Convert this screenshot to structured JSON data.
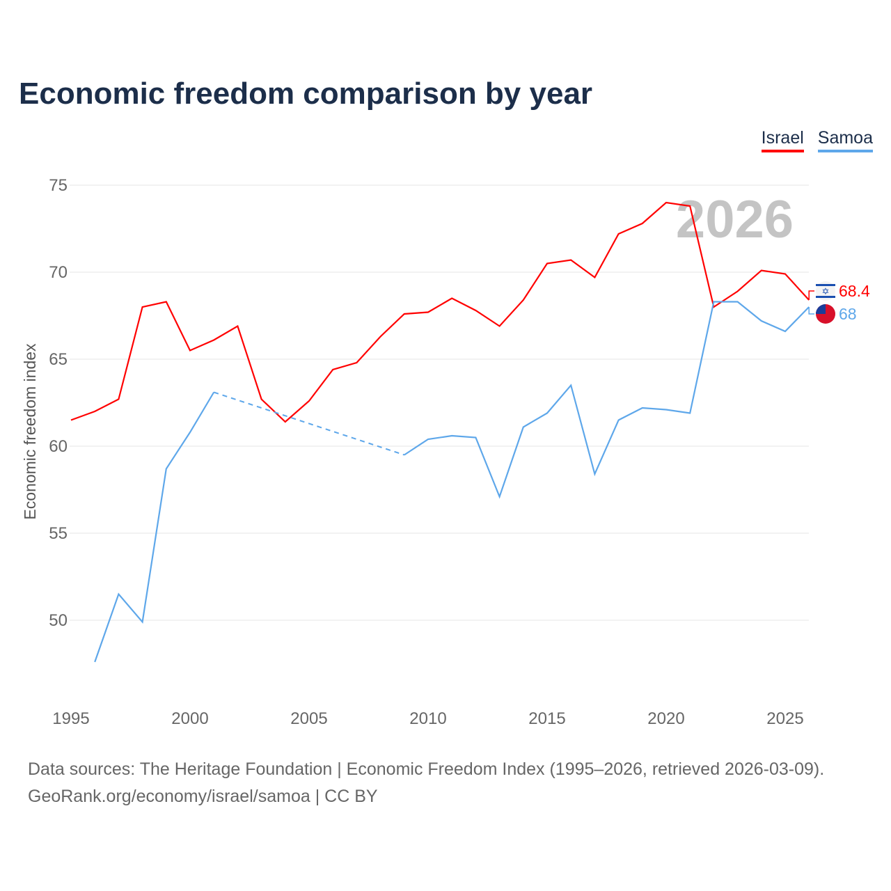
{
  "title": "Economic freedom comparison by year",
  "source_line1": "Data sources: The Heritage Foundation | Economic Freedom Index (1995–2026, retrieved 2026-03-09).",
  "source_line2": "GeoRank.org/economy/israel/samoa | CC BY",
  "chart_data": {
    "type": "line",
    "title": "Economic freedom comparison by year",
    "xlabel": "",
    "ylabel": "Economic freedom index",
    "xlim": [
      1995,
      2026
    ],
    "ylim": [
      45,
      77
    ],
    "x_ticks": [
      1995,
      2000,
      2005,
      2010,
      2015,
      2020,
      2025
    ],
    "y_ticks": [
      50,
      55,
      60,
      65,
      70,
      75
    ],
    "grid": true,
    "legend_position": "top-right",
    "year_watermark": "2026",
    "x": [
      1995,
      1996,
      1997,
      1998,
      1999,
      2000,
      2001,
      2002,
      2003,
      2004,
      2005,
      2006,
      2007,
      2008,
      2009,
      2010,
      2011,
      2012,
      2013,
      2014,
      2015,
      2016,
      2017,
      2018,
      2019,
      2020,
      2021,
      2022,
      2023,
      2024,
      2025,
      2026
    ],
    "series": [
      {
        "name": "Israel",
        "color": "#ff0000",
        "end_label": "68.4",
        "values": [
          61.5,
          62.0,
          62.7,
          68.0,
          68.3,
          65.5,
          66.1,
          66.9,
          62.7,
          61.4,
          62.6,
          64.4,
          64.8,
          66.3,
          67.6,
          67.7,
          68.5,
          67.8,
          66.9,
          68.4,
          70.5,
          70.7,
          69.7,
          72.2,
          72.8,
          74.0,
          73.8,
          68.0,
          68.9,
          70.1,
          69.9,
          68.4
        ]
      },
      {
        "name": "Samoa",
        "color": "#5ea7ea",
        "end_label": "68",
        "values": [
          null,
          47.6,
          51.5,
          49.9,
          58.7,
          60.8,
          63.1,
          null,
          null,
          null,
          null,
          null,
          null,
          null,
          59.5,
          60.4,
          60.6,
          60.5,
          57.1,
          61.1,
          61.9,
          63.5,
          58.4,
          61.5,
          62.2,
          62.1,
          61.9,
          68.3,
          68.3,
          67.2,
          66.6,
          68.0
        ]
      }
    ]
  }
}
